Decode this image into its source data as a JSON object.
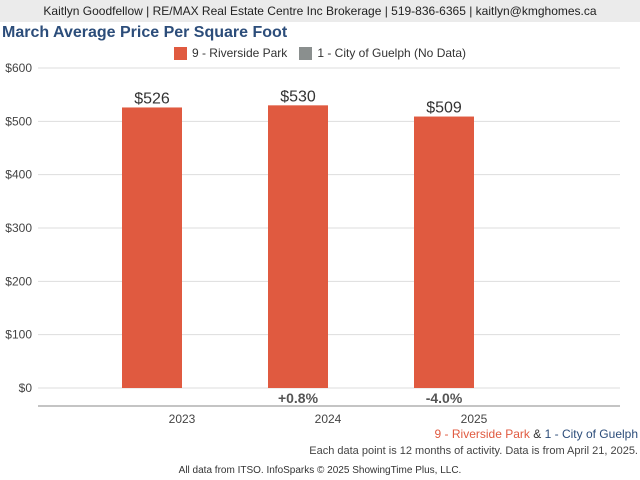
{
  "header": {
    "contact": "Kaitlyn Goodfellow | RE/MAX Real Estate Centre Inc Brokerage | 519-836-6365 | kaitlyn@kmghomes.ca"
  },
  "colors": {
    "series1": "#e05a40",
    "series2": "#8a8f8e",
    "title": "#2c4d7a"
  },
  "chart_data": {
    "type": "bar",
    "title": "March Average Price Per Square Foot",
    "categories": [
      "2023",
      "2024",
      "2025"
    ],
    "series": [
      {
        "name": "9 - Riverside Park",
        "values": [
          526,
          530,
          509
        ],
        "labels": [
          "$526",
          "$530",
          "$509"
        ]
      },
      {
        "name": "1 - City of Guelph (No Data)",
        "values": [
          null,
          null,
          null
        ]
      }
    ],
    "changes": [
      "",
      "+0.8%",
      "-4.0%"
    ],
    "ylim": [
      0,
      600
    ],
    "yticks": [
      0,
      100,
      200,
      300,
      400,
      500,
      600
    ],
    "ytick_labels": [
      "$0",
      "$100",
      "$200",
      "$300",
      "$400",
      "$500",
      "$600"
    ],
    "xlabel": "",
    "ylabel": "",
    "grid": true,
    "legend_position": "top-center"
  },
  "footer": {
    "series1_name": "9 - Riverside Park",
    "amp": "&",
    "series2_name": "1 - City of Guelph",
    "note": "Each data point is 12 months of activity. Data is from April 21, 2025.",
    "source": "All data from ITSO. InfoSparks © 2025 ShowingTime Plus, LLC."
  }
}
